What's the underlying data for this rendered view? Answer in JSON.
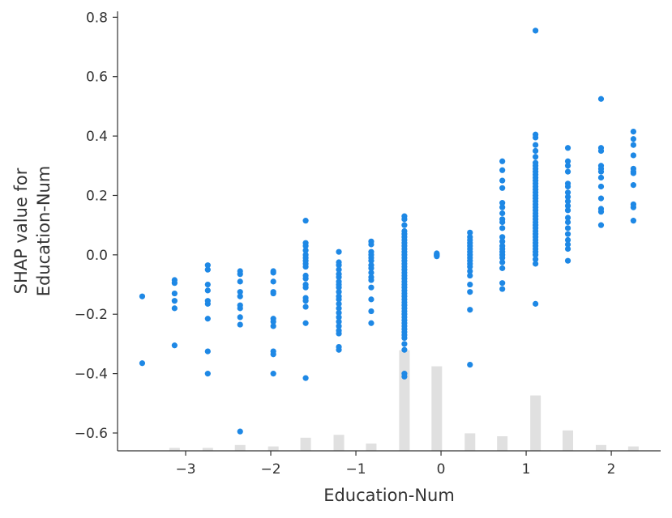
{
  "chart_data": {
    "type": "scatter",
    "xlabel": "Education-Num",
    "ylabel": [
      "SHAP value for",
      "Education-Num"
    ],
    "xlim": [
      -3.8,
      2.58
    ],
    "ylim": [
      -0.66,
      0.82
    ],
    "xticks": [
      -3,
      -2,
      -1,
      0,
      1,
      2
    ],
    "xtick_labels": [
      "−3",
      "−2",
      "−1",
      "0",
      "1",
      "2"
    ],
    "yticks": [
      -0.6,
      -0.4,
      -0.2,
      0.0,
      0.2,
      0.4,
      0.6,
      0.8
    ],
    "ytick_labels": [
      "−0.6",
      "−0.4",
      "−0.2",
      "0.0",
      "0.2",
      "0.4",
      "0.6",
      "0.8"
    ],
    "grid": false,
    "point_color": "#1E88E5",
    "histogram_color": "#e0e0e0",
    "histogram": {
      "x": [
        -3.51,
        -3.13,
        -2.74,
        -2.36,
        -1.97,
        -1.59,
        -1.2,
        -0.82,
        -0.43,
        -0.05,
        0.34,
        0.72,
        1.11,
        1.49,
        1.88,
        2.26
      ],
      "relative_height": [
        0.0,
        0.02,
        0.02,
        0.04,
        0.03,
        0.09,
        0.11,
        0.05,
        0.69,
        0.58,
        0.12,
        0.1,
        0.38,
        0.14,
        0.04,
        0.03
      ]
    },
    "columns": [
      {
        "x": -3.51,
        "y": [
          -0.14,
          -0.365
        ]
      },
      {
        "x": -3.13,
        "y": [
          -0.085,
          -0.095,
          -0.13,
          -0.155,
          -0.18,
          -0.305
        ]
      },
      {
        "x": -2.74,
        "y": [
          -0.035,
          -0.05,
          -0.1,
          -0.12,
          -0.155,
          -0.165,
          -0.215,
          -0.325,
          -0.4
        ]
      },
      {
        "x": -2.36,
        "y": [
          -0.055,
          -0.065,
          -0.09,
          -0.125,
          -0.14,
          -0.17,
          -0.18,
          -0.21,
          -0.235,
          -0.595
        ]
      },
      {
        "x": -1.97,
        "y": [
          -0.055,
          -0.06,
          -0.09,
          -0.125,
          -0.13,
          -0.215,
          -0.225,
          -0.24,
          -0.325,
          -0.335,
          -0.4
        ]
      },
      {
        "x": -1.59,
        "y": [
          0.115,
          0.04,
          0.03,
          0.015,
          0.0,
          -0.01,
          -0.02,
          -0.03,
          -0.04,
          -0.07,
          -0.08,
          -0.1,
          -0.11,
          -0.145,
          -0.155,
          -0.175,
          -0.23,
          -0.415
        ]
      },
      {
        "x": -1.2,
        "y": [
          0.01,
          -0.025,
          -0.035,
          -0.05,
          -0.065,
          -0.075,
          -0.09,
          -0.1,
          -0.11,
          -0.125,
          -0.14,
          -0.15,
          -0.165,
          -0.18,
          -0.195,
          -0.21,
          -0.225,
          -0.24,
          -0.255,
          -0.265,
          -0.31,
          -0.32
        ]
      },
      {
        "x": -0.82,
        "y": [
          0.045,
          0.035,
          0.01,
          0.0,
          -0.01,
          -0.02,
          -0.035,
          -0.045,
          -0.06,
          -0.075,
          -0.085,
          -0.11,
          -0.15,
          -0.19,
          -0.23
        ]
      },
      {
        "x": -0.43,
        "y": [
          0.13,
          0.12,
          0.1,
          0.08,
          0.07,
          0.06,
          0.05,
          0.04,
          0.03,
          0.02,
          0.01,
          0.0,
          -0.01,
          -0.02,
          -0.03,
          -0.04,
          -0.05,
          -0.06,
          -0.07,
          -0.08,
          -0.09,
          -0.1,
          -0.11,
          -0.12,
          -0.13,
          -0.14,
          -0.15,
          -0.16,
          -0.17,
          -0.18,
          -0.19,
          -0.2,
          -0.21,
          -0.22,
          -0.23,
          -0.24,
          -0.25,
          -0.26,
          -0.27,
          -0.28,
          -0.3,
          -0.32,
          -0.4,
          -0.41
        ]
      },
      {
        "x": -0.05,
        "y": [
          0.005,
          0.0,
          -0.005,
          0.002,
          -0.002
        ]
      },
      {
        "x": 0.34,
        "y": [
          0.075,
          0.06,
          0.05,
          0.04,
          0.03,
          0.02,
          0.01,
          0.0,
          -0.01,
          -0.02,
          -0.03,
          -0.04,
          -0.055,
          -0.07,
          -0.1,
          -0.125,
          -0.185,
          -0.37
        ]
      },
      {
        "x": 0.72,
        "y": [
          0.315,
          0.285,
          0.25,
          0.225,
          0.175,
          0.16,
          0.14,
          0.12,
          0.11,
          0.09,
          0.06,
          0.045,
          0.03,
          0.02,
          0.01,
          0.0,
          -0.01,
          -0.025,
          -0.045,
          -0.095,
          -0.115
        ]
      },
      {
        "x": 1.11,
        "y": [
          0.755,
          0.405,
          0.395,
          0.37,
          0.35,
          0.33,
          0.31,
          0.3,
          0.29,
          0.28,
          0.27,
          0.26,
          0.25,
          0.24,
          0.23,
          0.22,
          0.21,
          0.2,
          0.19,
          0.18,
          0.17,
          0.16,
          0.15,
          0.14,
          0.13,
          0.12,
          0.11,
          0.1,
          0.09,
          0.08,
          0.07,
          0.06,
          0.05,
          0.04,
          0.03,
          0.02,
          0.01,
          0.0,
          -0.015,
          -0.03,
          -0.165
        ]
      },
      {
        "x": 1.49,
        "y": [
          0.36,
          0.315,
          0.3,
          0.28,
          0.24,
          0.23,
          0.21,
          0.195,
          0.18,
          0.165,
          0.15,
          0.125,
          0.11,
          0.09,
          0.07,
          0.05,
          0.035,
          0.02,
          -0.02
        ]
      },
      {
        "x": 1.88,
        "y": [
          0.525,
          0.36,
          0.35,
          0.3,
          0.29,
          0.28,
          0.26,
          0.23,
          0.19,
          0.155,
          0.145,
          0.1
        ]
      },
      {
        "x": 2.26,
        "y": [
          0.415,
          0.39,
          0.37,
          0.335,
          0.29,
          0.28,
          0.275,
          0.235,
          0.17,
          0.16,
          0.115
        ]
      }
    ]
  }
}
